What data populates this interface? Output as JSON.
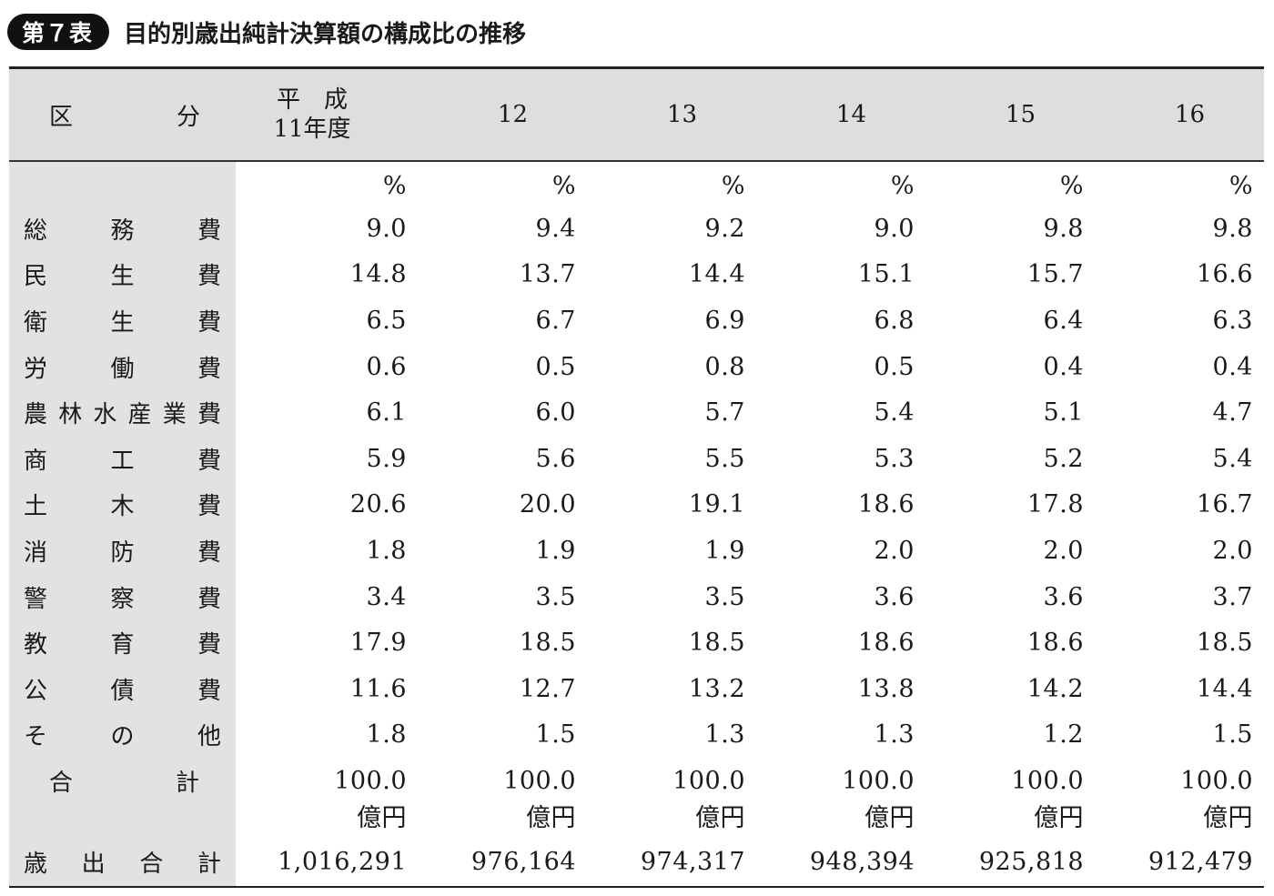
{
  "title": {
    "badge": "第７表",
    "text": "目的別歳出純計決算額の構成比の推移"
  },
  "header": {
    "label": [
      "区",
      "分"
    ],
    "first_year_line1": "平　成",
    "first_year_line2": "11年度",
    "years": [
      "12",
      "13",
      "14",
      "15",
      "16"
    ]
  },
  "percent_unit": [
    "%",
    "%",
    "%",
    "%",
    "%",
    "%"
  ],
  "rows": [
    {
      "label": [
        "総",
        "務",
        "費"
      ],
      "values": [
        "9.0",
        "9.4",
        "9.2",
        "9.0",
        "9.8",
        "9.8"
      ]
    },
    {
      "label": [
        "民",
        "生",
        "費"
      ],
      "values": [
        "14.8",
        "13.7",
        "14.4",
        "15.1",
        "15.7",
        "16.6"
      ]
    },
    {
      "label": [
        "衛",
        "生",
        "費"
      ],
      "values": [
        "6.5",
        "6.7",
        "6.9",
        "6.8",
        "6.4",
        "6.3"
      ]
    },
    {
      "label": [
        "労",
        "働",
        "費"
      ],
      "values": [
        "0.6",
        "0.5",
        "0.8",
        "0.5",
        "0.4",
        "0.4"
      ]
    },
    {
      "label": [
        "農",
        "林",
        "水",
        "産",
        "業",
        "費"
      ],
      "values": [
        "6.1",
        "6.0",
        "5.7",
        "5.4",
        "5.1",
        "4.7"
      ]
    },
    {
      "label": [
        "商",
        "工",
        "費"
      ],
      "values": [
        "5.9",
        "5.6",
        "5.5",
        "5.3",
        "5.2",
        "5.4"
      ]
    },
    {
      "label": [
        "土",
        "木",
        "費"
      ],
      "values": [
        "20.6",
        "20.0",
        "19.1",
        "18.6",
        "17.8",
        "16.7"
      ]
    },
    {
      "label": [
        "消",
        "防",
        "費"
      ],
      "values": [
        "1.8",
        "1.9",
        "1.9",
        "2.0",
        "2.0",
        "2.0"
      ]
    },
    {
      "label": [
        "警",
        "察",
        "費"
      ],
      "values": [
        "3.4",
        "3.5",
        "3.5",
        "3.6",
        "3.6",
        "3.7"
      ]
    },
    {
      "label": [
        "教",
        "育",
        "費"
      ],
      "values": [
        "17.9",
        "18.5",
        "18.5",
        "18.6",
        "18.6",
        "18.5"
      ]
    },
    {
      "label": [
        "公",
        "債",
        "費"
      ],
      "values": [
        "11.6",
        "12.7",
        "13.2",
        "13.8",
        "14.2",
        "14.4"
      ]
    },
    {
      "label": [
        "そ",
        "の",
        "他"
      ],
      "values": [
        "1.8",
        "1.5",
        "1.3",
        "1.3",
        "1.2",
        "1.5"
      ]
    }
  ],
  "total": {
    "label": [
      "合",
      "計"
    ],
    "values": [
      "100.0",
      "100.0",
      "100.0",
      "100.0",
      "100.0",
      "100.0"
    ]
  },
  "yen_unit": [
    "億円",
    "億円",
    "億円",
    "億円",
    "億円",
    "億円"
  ],
  "expenditure_total": {
    "label": [
      "歳",
      "出",
      "合",
      "計"
    ],
    "values": [
      "1,016,291",
      "976,164",
      "974,317",
      "948,394",
      "925,818",
      "912,479"
    ]
  }
}
